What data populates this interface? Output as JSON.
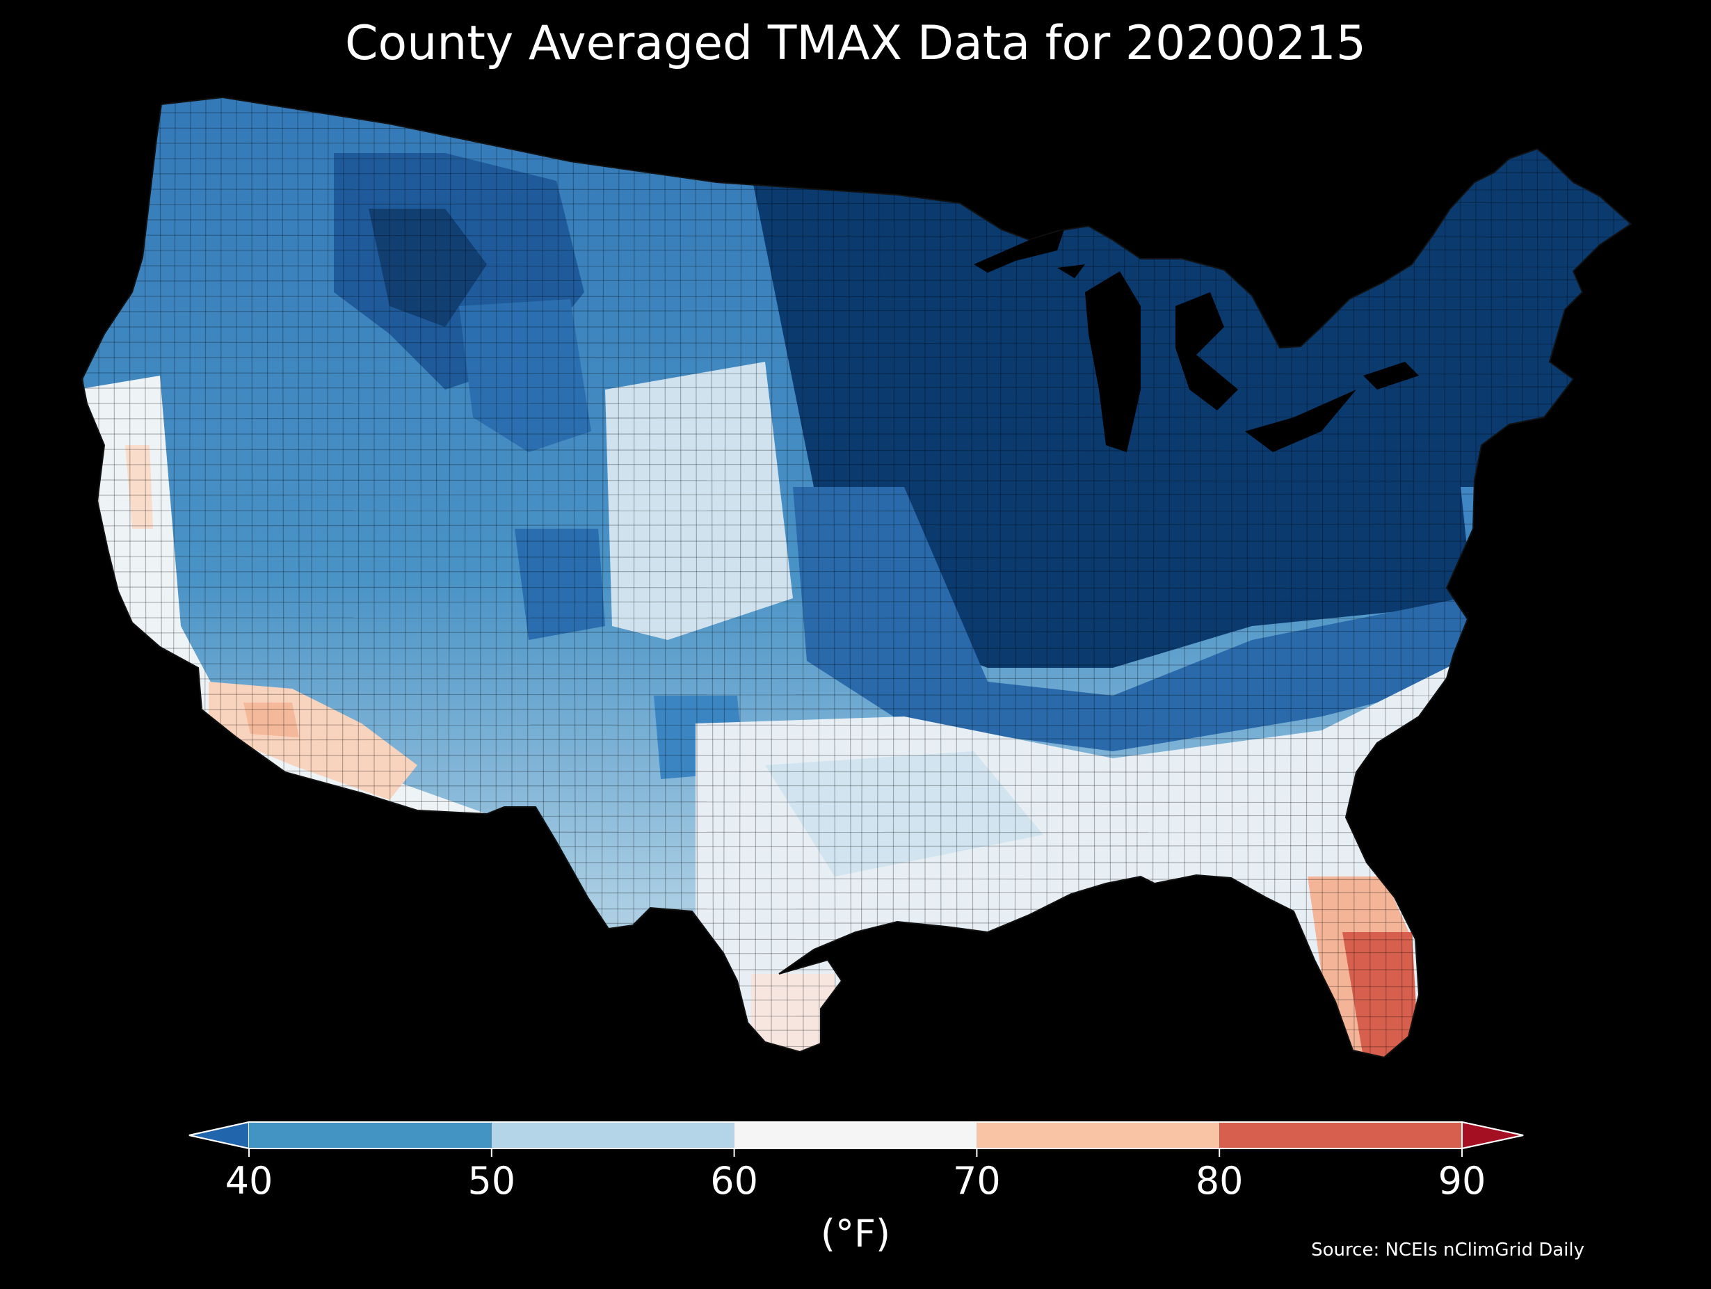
{
  "title": "County Averaged TMAX Data for 20200215",
  "colorbar": {
    "unit_label": "(°F)",
    "ticks": [
      "40",
      "50",
      "60",
      "70",
      "80",
      "90"
    ],
    "bins": [
      {
        "range": "<40",
        "color": "#2166ac"
      },
      {
        "range": "40-50",
        "color": "#4393c3"
      },
      {
        "range": "50-60",
        "color": "#b4d5e8"
      },
      {
        "range": "60-70",
        "color": "#f5f5f5"
      },
      {
        "range": "70-80",
        "color": "#f9c3a5"
      },
      {
        "range": "80-90",
        "color": "#d6604d"
      },
      {
        "range": ">90",
        "color": "#a50f22"
      }
    ]
  },
  "source": "Source: NCEIs nClimGrid Daily",
  "palette": {
    "background": "#000000",
    "deep_cold": "#0b3a6e",
    "cold": "#2166ac",
    "cool": "#4393c3",
    "mild": "#b4d5e8",
    "neutral": "#f5f5f5",
    "warm": "#f9c3a5",
    "hot": "#d6604d"
  }
}
